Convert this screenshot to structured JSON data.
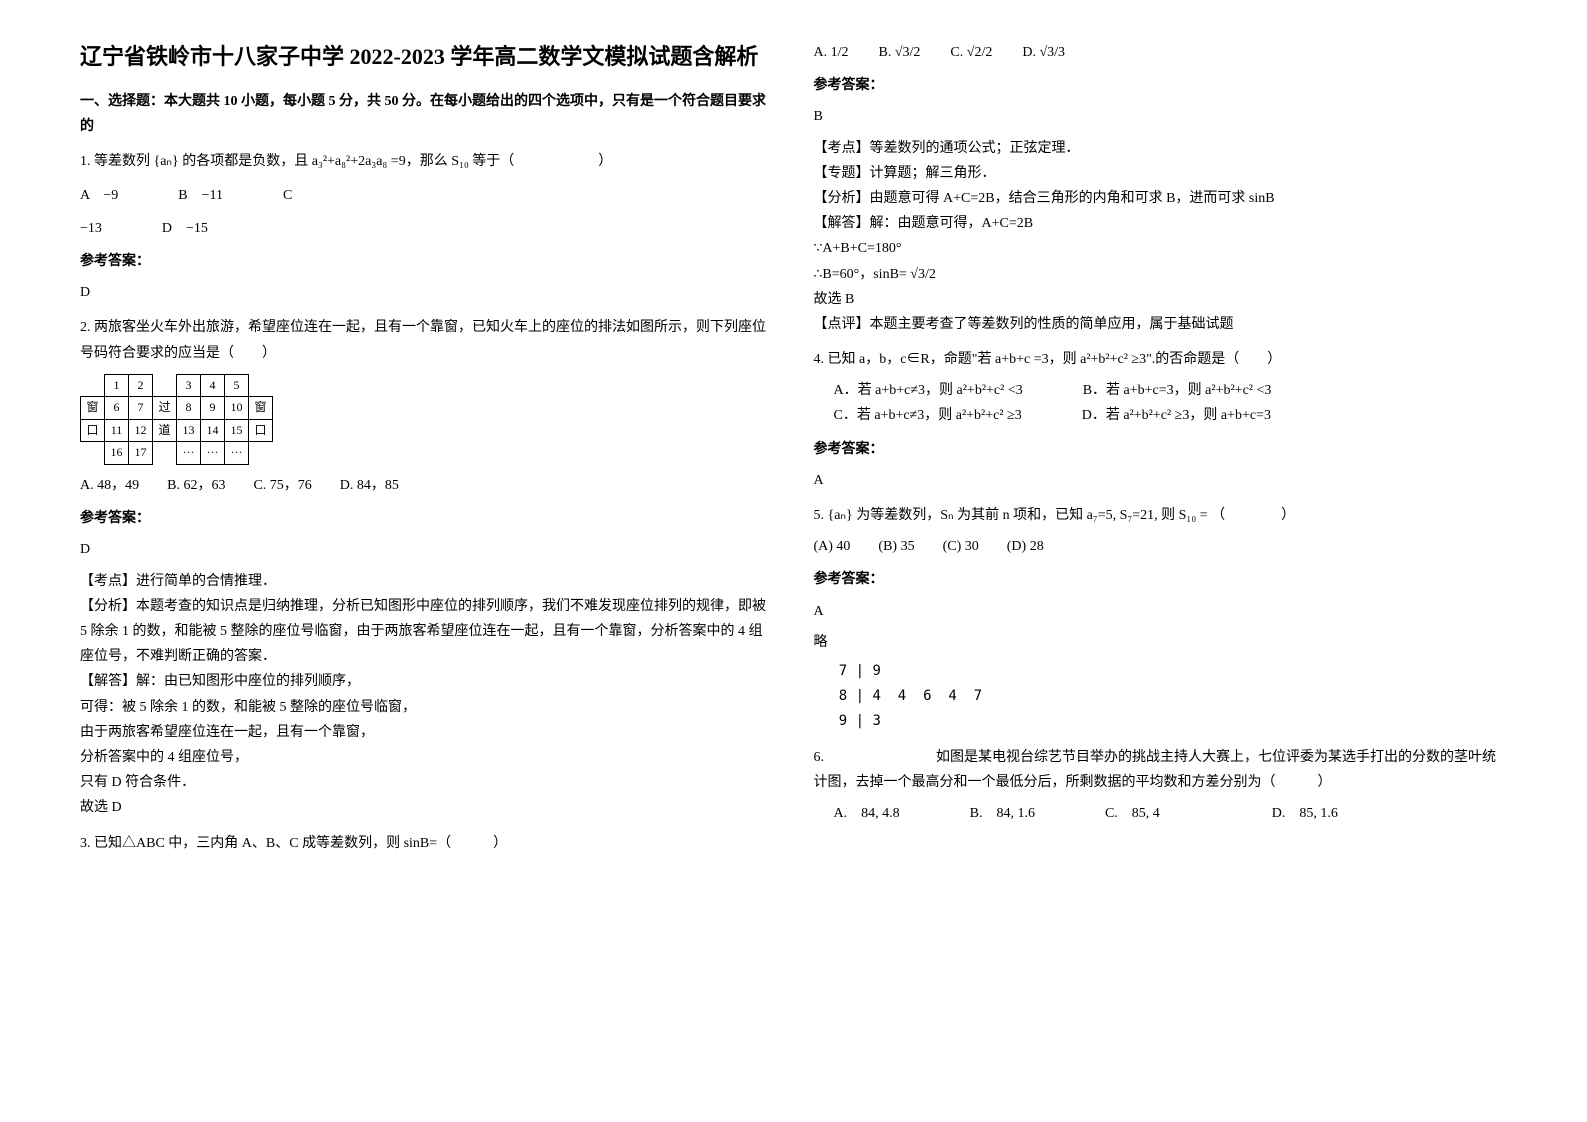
{
  "left": {
    "title": "辽宁省铁岭市十八家子中学 2022-2023 学年高二数学文模拟试题含解析",
    "section1": "一、选择题：本大题共 10 小题，每小题 5 分，共 50 分。在每小题给出的四个选项中，只有是一个符合题目要求的",
    "q1": {
      "text": "1. 等差数列 {aₙ} 的各项都是负数，且 a₃²+a₈²+2a₃a₈ =9，那么 S₁₀ 等于（　　　　　　）",
      "optA": "A　−9",
      "optB": "B　−11",
      "optC": "C　−13",
      "optD": "D　−15",
      "answerLabel": "参考答案：",
      "answer": "D"
    },
    "q2": {
      "text": "2. 两旅客坐火车外出旅游，希望座位连在一起，且有一个靠窗，已知火车上的座位的排法如图所示，则下列座位号码符合要求的应当是（　　）",
      "table": {
        "r1": [
          "",
          "1",
          "2",
          "",
          "3",
          "4",
          "5",
          ""
        ],
        "r2": [
          "窗",
          "6",
          "7",
          "过",
          "8",
          "9",
          "10",
          "窗"
        ],
        "r3": [
          "口",
          "11",
          "12",
          "道",
          "13",
          "14",
          "15",
          "口"
        ],
        "r4": [
          "",
          "16",
          "17",
          "",
          "···",
          "···",
          "···",
          ""
        ]
      },
      "options": "A. 48，49　　B. 62，63　　C. 75，76　　D. 84，85",
      "answerLabel": "参考答案：",
      "answer": "D",
      "kaodian": "【考点】进行简单的合情推理．",
      "fenxi": "【分析】本题考查的知识点是归纳推理，分析已知图形中座位的排列顺序，我们不难发现座位排列的规律，即被 5 除余 1 的数，和能被 5 整除的座位号临窗，由于两旅客希望座位连在一起，且有一个靠窗，分析答案中的 4 组座位号，不难判断正确的答案．",
      "jieda1": "【解答】解：由已知图形中座位的排列顺序，",
      "jieda2": "可得：被 5 除余 1 的数，和能被 5 整除的座位号临窗，",
      "jieda3": "由于两旅客希望座位连在一起，且有一个靠窗，",
      "jieda4": "分析答案中的 4 组座位号，",
      "jieda5": "只有 D 符合条件．",
      "jieda6": "故选 D"
    },
    "q3": {
      "text": "3. 已知△ABC 中，三内角 A、B、C 成等差数列，则 sinB=（　　　）"
    }
  },
  "right": {
    "q3opts": {
      "a": "A. 1/2",
      "b": "B. √3/2",
      "c": "C. √2/2",
      "d": "D. √3/3"
    },
    "q3answer": {
      "label": "参考答案：",
      "ans": "B",
      "kaodian": "【考点】等差数列的通项公式；正弦定理．",
      "zhuanti": "【专题】计算题；解三角形．",
      "fenxi": "【分析】由题意可得 A+C=2B，结合三角形的内角和可求 B，进而可求 sinB",
      "jieda1": "【解答】解：由题意可得，A+C=2B",
      "jieda2": "∵A+B+C=180°",
      "jieda3": "∴B=60°，sinB= √3/2",
      "jieda4": "故选 B",
      "dianping": "【点评】本题主要考查了等差数列的性质的简单应用，属于基础试题"
    },
    "q4": {
      "text": "4. 已知 a，b，c∈R，命题\"若 a+b+c =3，则 a²+b²+c² ≥3\".的否命题是（　　）",
      "optA": "A．若 a+b+c≠3，则 a²+b²+c² <3",
      "optB": "B．若 a+b+c=3，则 a²+b²+c² <3",
      "optC": "C．若 a+b+c≠3，则 a²+b²+c² ≥3",
      "optD": "D．若 a²+b²+c² ≥3，则 a+b+c=3",
      "answerLabel": "参考答案：",
      "answer": "A"
    },
    "q5": {
      "text": "5. {aₙ} 为等差数列，Sₙ 为其前 n 项和，已知 a₇=5, S₇=21, 则 S₁₀ = （　　　　）",
      "options": "(A) 40　　(B) 35　　(C) 30　　(D) 28",
      "answerLabel": "参考答案：",
      "answer": "A",
      "note": "略"
    },
    "q6": {
      "stemleaf": "   7 | 9\n   8 | 4  4  6  4  7\n   9 | 3",
      "text": "6.　　　　　　　　如图是某电视台综艺节目举办的挑战主持人大赛上，七位评委为某选手打出的分数的茎叶统计图，去掉一个最高分和一个最低分后，所剩数据的平均数和方差分别为（　　　）",
      "options": "A.　84, 4.8　　　　　B.　84, 1.6　　　　　C.　85, 4　　　　　　　　D.　85, 1.6"
    }
  }
}
